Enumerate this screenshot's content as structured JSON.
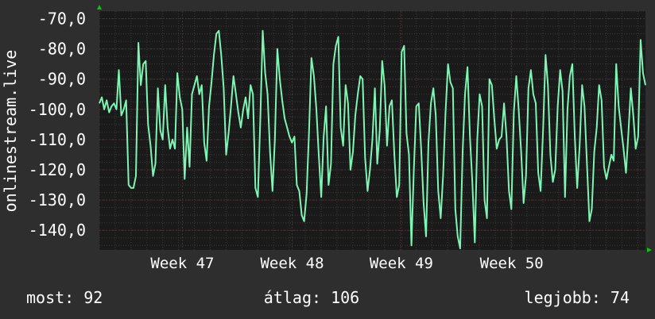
{
  "colors": {
    "background": "#2e2e2e",
    "plot_background": "#1a1a1a",
    "line": "#7ff5b5",
    "grid_minor": "#3a3a3a",
    "grid_major": "#5a2a2a",
    "axis_arrow": "#00cc00",
    "text": "#ffffff"
  },
  "chart_data": {
    "type": "line",
    "ylabel": "onlinestream.live",
    "ylim": [
      -146.5,
      -67.5
    ],
    "xlim": [
      0,
      100
    ],
    "y_ticks": [
      {
        "value": -70,
        "label": "-70,0"
      },
      {
        "value": -80,
        "label": "-80,0"
      },
      {
        "value": -90,
        "label": "-90,0"
      },
      {
        "value": -100,
        "label": "-100,0"
      },
      {
        "value": -110,
        "label": "-110,0"
      },
      {
        "value": -120,
        "label": "-120,0"
      },
      {
        "value": -130,
        "label": "-130,0"
      },
      {
        "value": -140,
        "label": "-140,0"
      }
    ],
    "x_ticks": [
      {
        "value": 15.2,
        "label": "Week 47"
      },
      {
        "value": 35.3,
        "label": "Week 48"
      },
      {
        "value": 55.3,
        "label": "Week 49"
      },
      {
        "value": 75.5,
        "label": "Week 50"
      }
    ],
    "grid": true,
    "series": [
      {
        "values": [
          -98,
          -96,
          -100,
          -97,
          -101,
          -99,
          -98,
          -100,
          -87,
          -102,
          -100,
          -97,
          -125,
          -126,
          -126,
          -122,
          -78,
          -92,
          -85,
          -84,
          -105,
          -112,
          -122,
          -118,
          -93,
          -107,
          -110,
          -92,
          -106,
          -113,
          -110,
          -113,
          -88,
          -96,
          -100,
          -123,
          -106,
          -119,
          -95,
          -92,
          -89,
          -95,
          -92,
          -111,
          -117,
          -99,
          -91,
          -82,
          -75,
          -74,
          -82,
          -93,
          -115,
          -108,
          -99,
          -89,
          -95,
          -101,
          -106,
          -100,
          -96,
          -103,
          -92,
          -95,
          -126,
          -129,
          -104,
          -74,
          -88,
          -95,
          -114,
          -127,
          -110,
          -80,
          -90,
          -97,
          -103,
          -106,
          -109,
          -111,
          -109,
          -125,
          -127,
          -135,
          -137,
          -128,
          -107,
          -83,
          -89,
          -100,
          -115,
          -129,
          -109,
          -99,
          -125,
          -118,
          -85,
          -79,
          -76,
          -106,
          -112,
          -92,
          -98,
          -120,
          -114,
          -102,
          -95,
          -89,
          -90,
          -116,
          -127,
          -120,
          -110,
          -93,
          -118,
          -107,
          -84,
          -92,
          -112,
          -99,
          -97,
          -115,
          -129,
          -125,
          -81,
          -79,
          -108,
          -115,
          -145,
          -120,
          -99,
          -98,
          -113,
          -131,
          -142,
          -111,
          -98,
          -93,
          -102,
          -127,
          -136,
          -122,
          -101,
          -85,
          -91,
          -93,
          -133,
          -142,
          -146,
          -114,
          -95,
          -86,
          -109,
          -124,
          -144,
          -110,
          -95,
          -99,
          -130,
          -136,
          -90,
          -92,
          -103,
          -113,
          -110,
          -109,
          -98,
          -109,
          -127,
          -133,
          -101,
          -89,
          -100,
          -114,
          -131,
          -122,
          -93,
          -87,
          -95,
          -98,
          -121,
          -127,
          -107,
          -82,
          -92,
          -115,
          -124,
          -120,
          -99,
          -87,
          -94,
          -129,
          -100,
          -89,
          -85,
          -109,
          -126,
          -112,
          -92,
          -99,
          -118,
          -137,
          -133,
          -114,
          -106,
          -92,
          -97,
          -119,
          -123,
          -119,
          -115,
          -117,
          -85,
          -99,
          -106,
          -113,
          -121,
          -108,
          -93,
          -102,
          -113,
          -109,
          -77,
          -88,
          -92
        ]
      }
    ]
  },
  "footer": {
    "current_label": "most: 92",
    "average_label": "átlag: 106",
    "best_label": "legjobb: 74"
  }
}
